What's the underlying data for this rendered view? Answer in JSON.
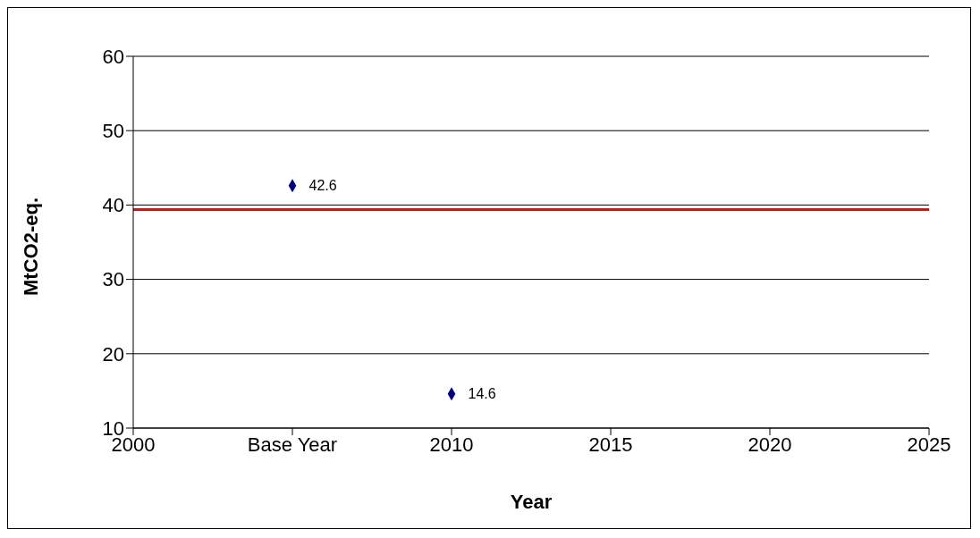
{
  "chart_data": {
    "type": "scatter",
    "xlabel": "Year",
    "ylabel": "MtCO2-eq.",
    "x": [
      2005,
      2010
    ],
    "series": [
      {
        "color": "#000080",
        "values": [
          42.6,
          14.6
        ]
      }
    ],
    "xlim": [
      2000,
      2025
    ],
    "xticks": [
      2000,
      {
        "value": 2005,
        "label": "Base Year"
      },
      2010,
      2015,
      2020,
      2025
    ],
    "ylim": [
      10,
      60
    ],
    "yticks": [
      10,
      20,
      30,
      40,
      50,
      60
    ],
    "ref_lines": [
      {
        "axis": "y",
        "value": 39.4,
        "color": "#ff0000",
        "line_style": "solid"
      }
    ],
    "grid": "y",
    "marker": "diamond",
    "data_labels": true
  }
}
